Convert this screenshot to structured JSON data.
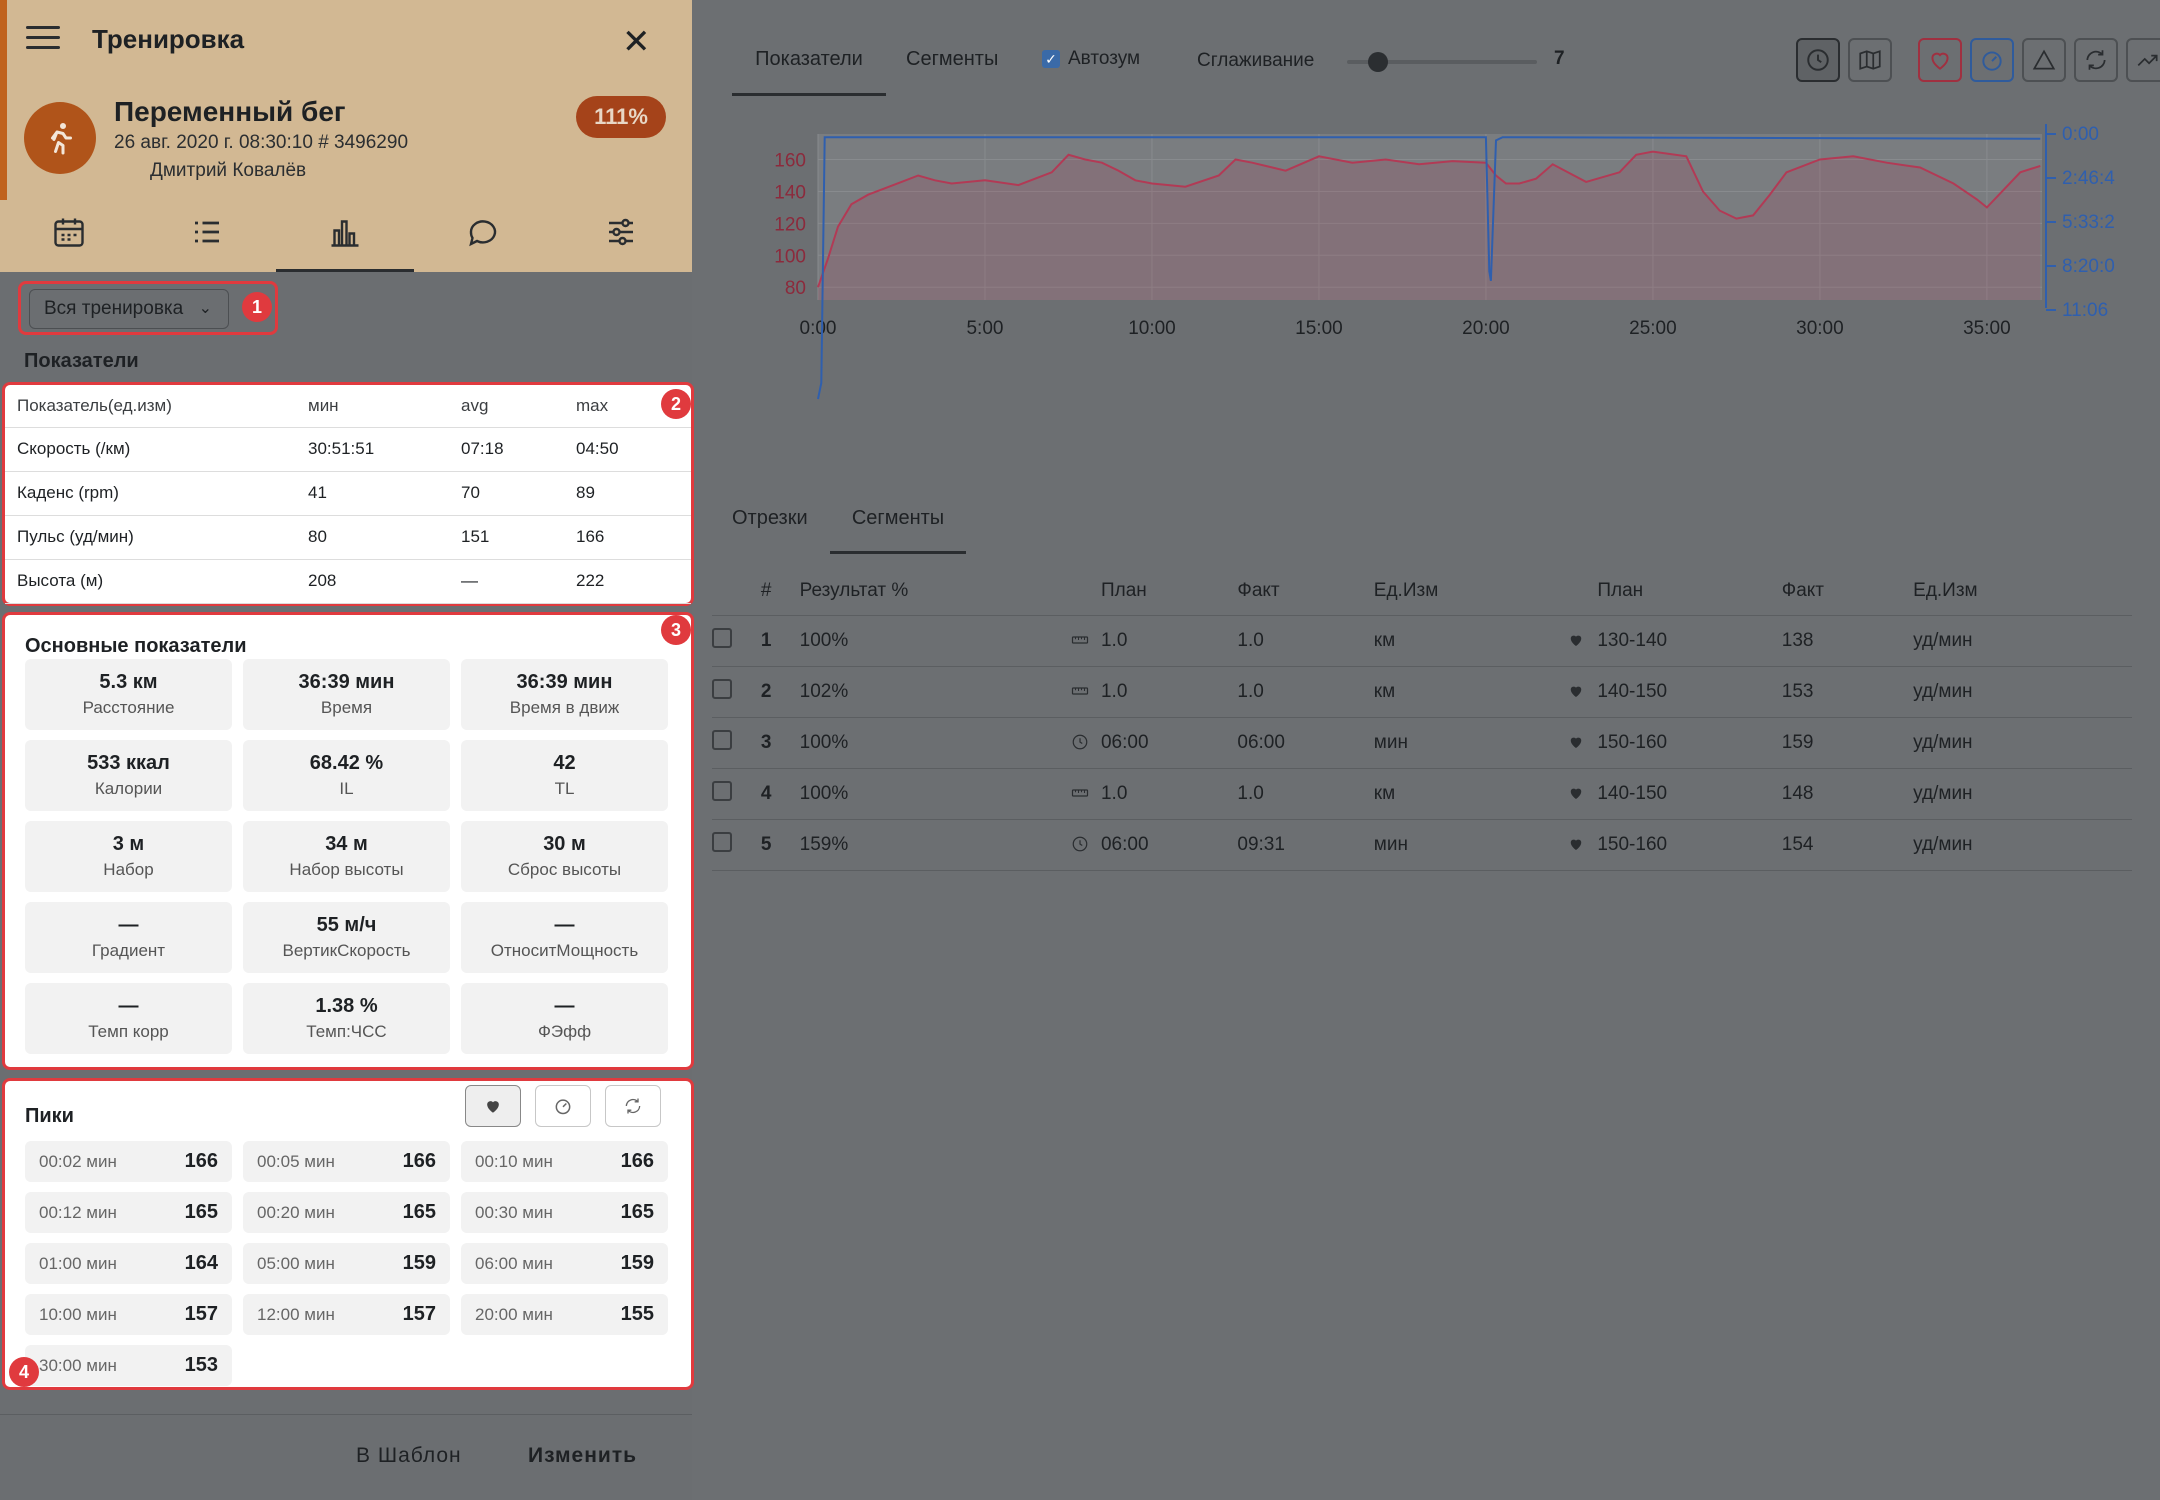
{
  "header": {
    "title": "Тренировка",
    "workout_name": "Переменный бег",
    "workout_date": "26 авг. 2020 г. 08:30:10 # 3496290",
    "athlete": "Дмитрий Ковалёв",
    "completion": "111%",
    "brand_color": "#c0621d"
  },
  "nav_icons": [
    "calendar-icon",
    "list-icon",
    "bar-chart-icon",
    "chat-icon",
    "sliders-icon"
  ],
  "range_select": {
    "value": "Вся тренировка"
  },
  "badges": {
    "b1": "1",
    "b2": "2",
    "b3": "3",
    "b4": "4"
  },
  "metrics": {
    "title": "Показатели",
    "headers": [
      "Показатель(ед.изм)",
      "мин",
      "avg",
      "max"
    ],
    "rows": [
      [
        "Скорость (/км)",
        "30:51:51",
        "07:18",
        "04:50"
      ],
      [
        "Каденс (rpm)",
        "41",
        "70",
        "89"
      ],
      [
        "Пульс (уд/мин)",
        "80",
        "151",
        "166"
      ],
      [
        "Высота (м)",
        "208",
        "—",
        "222"
      ]
    ]
  },
  "main_stats": {
    "title": "Основные показатели",
    "items": [
      {
        "value": "5.3 км",
        "label": "Расстояние"
      },
      {
        "value": "36:39 мин",
        "label": "Время"
      },
      {
        "value": "36:39 мин",
        "label": "Время в движ"
      },
      {
        "value": "533 ккал",
        "label": "Калории"
      },
      {
        "value": "68.42 %",
        "label": "IL"
      },
      {
        "value": "42",
        "label": "TL"
      },
      {
        "value": "3 м",
        "label": "Набор"
      },
      {
        "value": "34 м",
        "label": "Набор высоты"
      },
      {
        "value": "30 м",
        "label": "Сброс высоты"
      },
      {
        "value": "—",
        "label": "Градиент"
      },
      {
        "value": "55 м/ч",
        "label": "ВертикСкорость"
      },
      {
        "value": "—",
        "label": "ОтноситМощность"
      },
      {
        "value": "—",
        "label": "Темп корр"
      },
      {
        "value": "1.38 %",
        "label": "Темп:ЧСС"
      },
      {
        "value": "—",
        "label": "ФЭфф"
      }
    ]
  },
  "peaks": {
    "title": "Пики",
    "items": [
      {
        "duration": "00:02 мин",
        "value": "166"
      },
      {
        "duration": "00:05 мин",
        "value": "166"
      },
      {
        "duration": "00:10 мин",
        "value": "166"
      },
      {
        "duration": "00:12 мин",
        "value": "165"
      },
      {
        "duration": "00:20 мин",
        "value": "165"
      },
      {
        "duration": "00:30 мин",
        "value": "165"
      },
      {
        "duration": "01:00 мин",
        "value": "164"
      },
      {
        "duration": "05:00 мин",
        "value": "159"
      },
      {
        "duration": "06:00 мин",
        "value": "159"
      },
      {
        "duration": "10:00 мин",
        "value": "157"
      },
      {
        "duration": "12:00 мин",
        "value": "157"
      },
      {
        "duration": "20:00 мин",
        "value": "155"
      },
      {
        "duration": "30:00 мин",
        "value": "153"
      }
    ]
  },
  "footer": {
    "template": "В Шаблон",
    "edit": "Изменить"
  },
  "chart_toolbar": {
    "tab_metrics": "Показатели",
    "tab_segments": "Сегменты",
    "autozoom": "Автозум",
    "smoothing": "Сглаживание",
    "smoothing_value": "7",
    "smoothing_fraction": 0.1
  },
  "chart_data": {
    "type": "line",
    "x_ticks": [
      "0:00",
      "5:00",
      "10:00",
      "15:00",
      "20:00",
      "25:00",
      "30:00",
      "35:00"
    ],
    "xlim": [
      0,
      36.65
    ],
    "y_left_ticks": [
      "160",
      "140",
      "120",
      "100",
      "80"
    ],
    "ylim_left": [
      72,
      176
    ],
    "y_right_ticks": [
      "0:00",
      "2:46:4",
      "5:33:2",
      "8:20:0",
      "11:06"
    ],
    "series": [
      {
        "color": "#b23a55",
        "x": [
          0,
          0.3,
          0.6,
          1,
          1.5,
          2,
          2.5,
          3,
          3.5,
          4,
          5,
          6,
          7,
          7.5,
          8,
          8.5,
          9,
          9.5,
          10,
          11,
          12,
          12.5,
          13,
          14,
          15,
          16,
          17,
          18,
          19,
          20,
          20.3,
          20.6,
          21,
          21.5,
          22,
          23,
          24,
          24.5,
          25,
          26,
          26.5,
          27,
          27.5,
          28,
          28.5,
          29,
          30,
          31,
          32,
          33,
          34,
          34.7,
          35,
          36,
          36.6
        ],
        "y": [
          80,
          98,
          118,
          132,
          138,
          142,
          146,
          150,
          147,
          145,
          147,
          144,
          152,
          163,
          160,
          158,
          153,
          147,
          145,
          143,
          150,
          160,
          158,
          153,
          162,
          158,
          160,
          157,
          159,
          158,
          150,
          145,
          145,
          148,
          157,
          146,
          152,
          163,
          165,
          162,
          140,
          128,
          123,
          125,
          138,
          152,
          160,
          162,
          158,
          155,
          145,
          135,
          130,
          152,
          156
        ]
      },
      {
        "color": "#2f5fae",
        "x": [
          0,
          0.1,
          0.2,
          20,
          20.1,
          20.15,
          20.3,
          20.5,
          36.6
        ],
        "y": [
          10,
          20,
          174,
          174,
          90,
          84,
          172,
          174,
          173
        ]
      }
    ]
  },
  "segment_tabs": {
    "laps": "Отрезки",
    "segments": "Сегменты"
  },
  "segments": {
    "headers": [
      "#",
      "Результат %",
      "План",
      "Факт",
      "Ед.Изм",
      "План",
      "Факт",
      "Ед.Изм"
    ],
    "rows": [
      {
        "n": "1",
        "result": "100%",
        "icon": "ruler-icon",
        "plan": "1.0",
        "fact": "1.0",
        "unit": "км",
        "hr_plan": "130-140",
        "hr_fact": "138",
        "hr_unit": "уд/мин"
      },
      {
        "n": "2",
        "result": "102%",
        "icon": "ruler-icon",
        "plan": "1.0",
        "fact": "1.0",
        "unit": "км",
        "hr_plan": "140-150",
        "hr_fact": "153",
        "hr_unit": "уд/мин"
      },
      {
        "n": "3",
        "result": "100%",
        "icon": "clock-icon",
        "plan": "06:00",
        "fact": "06:00",
        "unit": "мин",
        "hr_plan": "150-160",
        "hr_fact": "159",
        "hr_unit": "уд/мин"
      },
      {
        "n": "4",
        "result": "100%",
        "icon": "ruler-icon",
        "plan": "1.0",
        "fact": "1.0",
        "unit": "км",
        "hr_plan": "140-150",
        "hr_fact": "148",
        "hr_unit": "уд/мин"
      },
      {
        "n": "5",
        "result": "159%",
        "icon": "clock-icon",
        "plan": "06:00",
        "fact": "09:31",
        "unit": "мин",
        "hr_plan": "150-160",
        "hr_fact": "154",
        "hr_unit": "уд/мин"
      }
    ]
  }
}
